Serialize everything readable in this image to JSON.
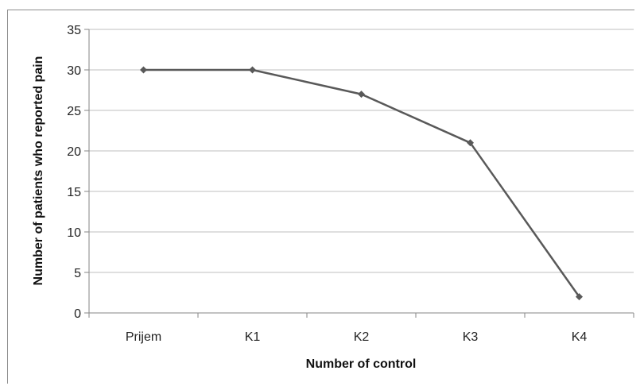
{
  "chart_data": {
    "type": "line",
    "categories": [
      "Prijem",
      "K1",
      "K2",
      "K3",
      "K4"
    ],
    "series": [
      {
        "values": [
          30,
          30,
          27,
          21,
          2
        ],
        "color": "#595959"
      }
    ],
    "xlabel": "Number of control",
    "ylabel": "Number of patients who reported pain",
    "ylim": [
      0,
      35
    ],
    "yticks": [
      0,
      5,
      10,
      15,
      20,
      25,
      30,
      35
    ],
    "grid": true,
    "marker": "diamond",
    "gridColor": "#bfbfbf",
    "axisColor": "#868686"
  }
}
